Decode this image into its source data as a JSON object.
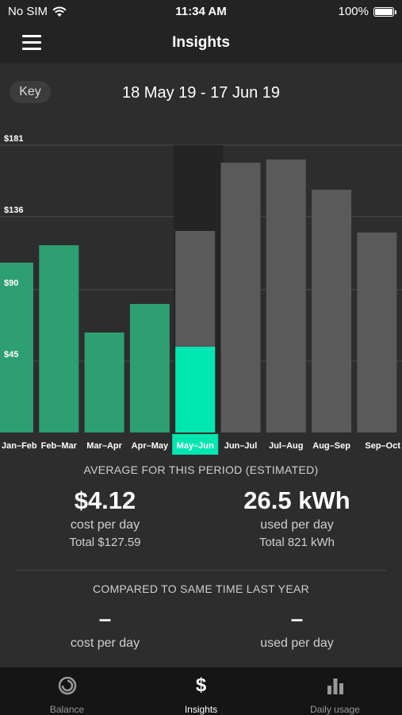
{
  "status_bar": {
    "carrier": "No SIM",
    "time": "11:34 AM",
    "battery": "100%"
  },
  "nav": {
    "title": "Insights"
  },
  "key_label": "Key",
  "period": "18 May 19 - 17 Jun 19",
  "chart_data": {
    "type": "bar",
    "categories": [
      "Jan–Feb",
      "Feb–Mar",
      "Mar–Apr",
      "Apr–May",
      "May–Jun",
      "Jun–Jul",
      "Jul–Aug",
      "Aug–Sep",
      "Sep–Oct"
    ],
    "y_ticks": [
      "$181",
      "$136",
      "$90",
      "$45"
    ],
    "y_tick_values": [
      181,
      136,
      90,
      45
    ],
    "ylim": [
      0,
      181
    ],
    "series": [
      {
        "values": [
          107,
          118,
          63,
          81,
          54,
          null,
          null,
          null,
          null
        ],
        "color": "#2e9e73"
      },
      {
        "values": [
          null,
          null,
          null,
          null,
          127,
          170,
          172,
          153,
          126
        ],
        "color": "#5a5a5a"
      }
    ],
    "selected_index": 4,
    "selected_color": "#00e6b0",
    "grid": true
  },
  "average": {
    "title": "AVERAGE FOR THIS PERIOD (ESTIMATED)",
    "cost_value": "$4.12",
    "cost_label": "cost per day",
    "cost_total": "Total $127.59",
    "usage_value": "26.5 kWh",
    "usage_label": "used per day",
    "usage_total": "Total 821 kWh"
  },
  "compare": {
    "title": "COMPARED TO SAME TIME LAST YEAR",
    "cost_value": "–",
    "cost_label": "cost per day",
    "usage_value": "–",
    "usage_label": "used per day"
  },
  "tabs": [
    {
      "label": "Balance",
      "icon": "balance-ring-icon"
    },
    {
      "label": "Insights",
      "icon": "dollar-icon"
    },
    {
      "label": "Daily usage",
      "icon": "bar-chart-icon"
    }
  ]
}
